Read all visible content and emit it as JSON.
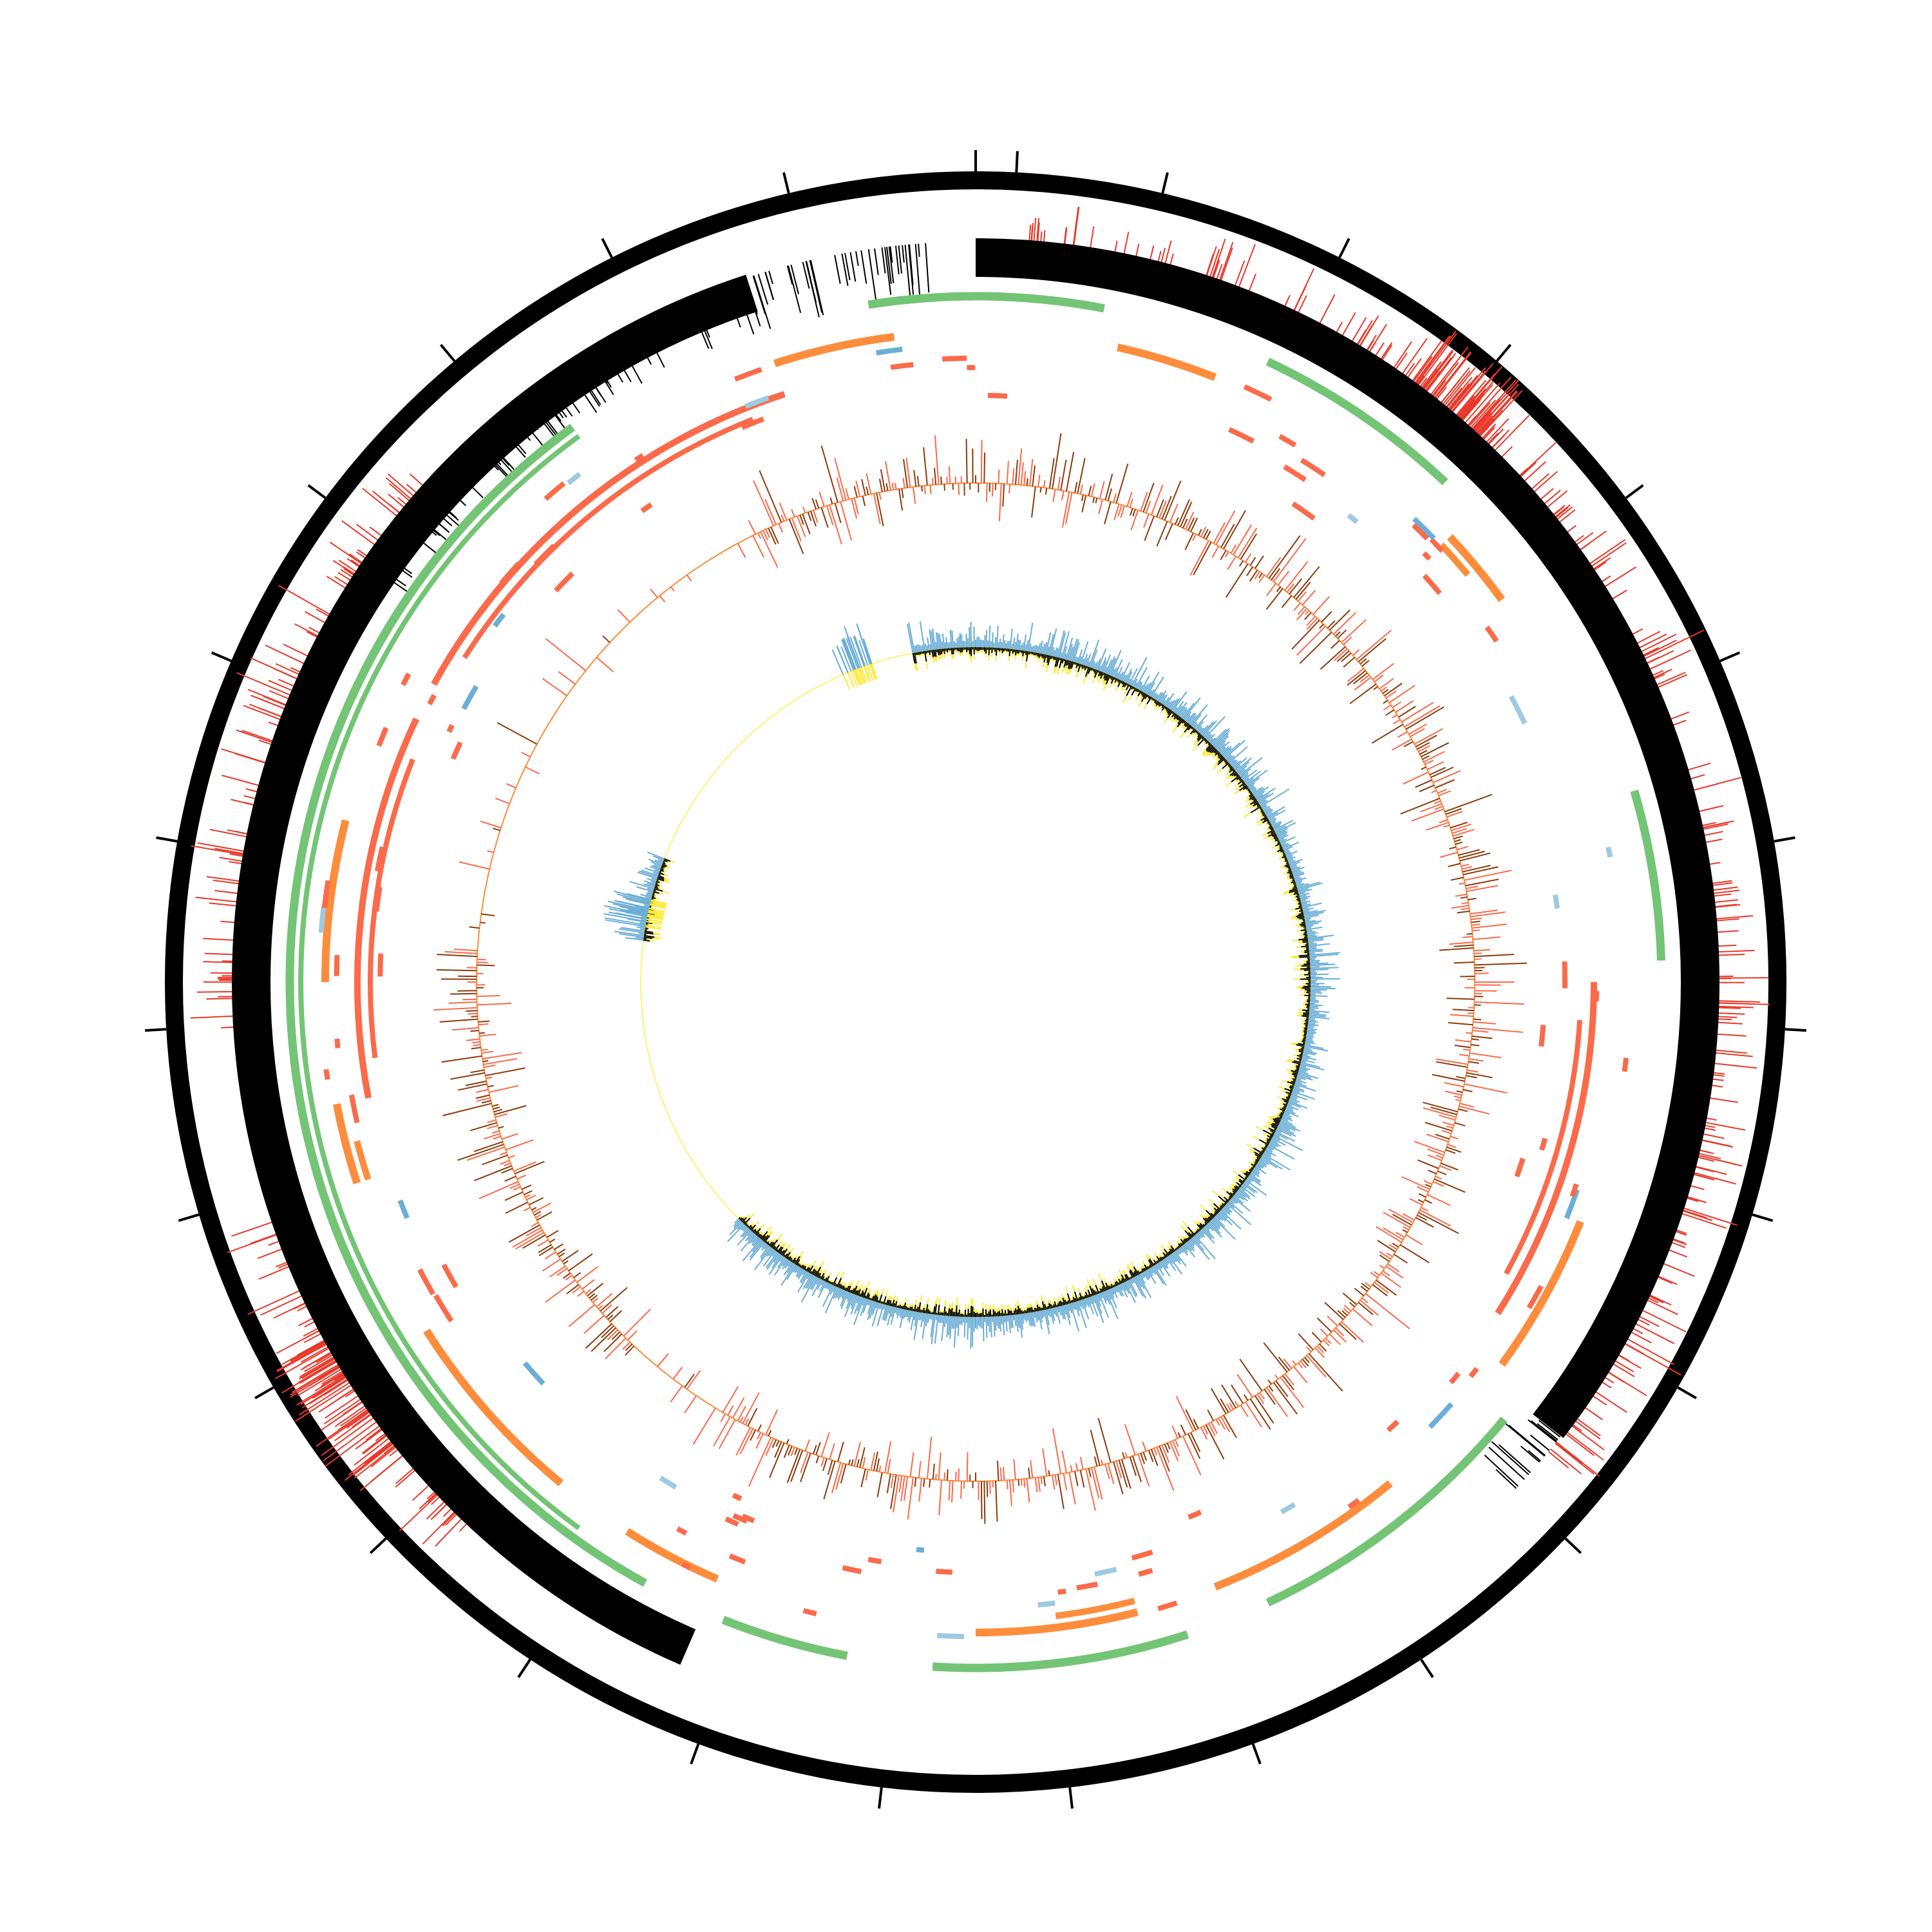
{
  "diagram": {
    "type": "circular-genome-map",
    "colors": {
      "backbone": "#000000",
      "outer_spikes": "#e8392a",
      "inner_black_track": "#000000",
      "green_track": "#74c476",
      "orange_track": "#fd8d3c",
      "salmon_track": "#fb6a4a",
      "blue_track": "#6baed6",
      "light_blue_track": "#9ecae1",
      "gc_content_high": "#fb6a4a",
      "gc_content_low": "#8c3b0c",
      "gc_content_baseline": "#fd8d3c",
      "gc_skew_positive": "#6baed6",
      "gc_skew_negative": "#000000",
      "gc_skew_fill": "#ffeb3b",
      "gc_skew_baseline": "#fff176"
    },
    "tracks": [
      {
        "name": "backbone",
        "kind": "ring",
        "color_key": "backbone"
      },
      {
        "name": "outer-features",
        "kind": "spikes",
        "color_key": "outer_spikes",
        "arcs": [
          [
            0.01,
            0.36
          ],
          [
            0.62,
            0.7
          ],
          [
            0.74,
            0.87
          ]
        ]
      },
      {
        "name": "black-block",
        "kind": "block-and-bars",
        "color_key": "inner_black_track",
        "solid_arcs": [
          [
            0.0,
            0.355
          ],
          [
            0.565,
            0.95
          ]
        ],
        "bar_arcs": [
          [
            0.355,
            0.37
          ],
          [
            0.84,
            0.99
          ],
          [
            0.89,
            0.93
          ]
        ]
      },
      {
        "name": "green-segments",
        "kind": "segments",
        "color_key": "green_track",
        "arcs": [
          [
            0.0,
            0.03
          ],
          [
            0.07,
            0.12
          ],
          [
            0.205,
            0.245
          ],
          [
            0.36,
            0.43
          ],
          [
            0.45,
            0.51
          ],
          [
            0.53,
            0.56
          ],
          [
            0.58,
            0.9
          ],
          [
            0.975,
            1.0
          ]
        ]
      },
      {
        "name": "orange-segments",
        "kind": "segments",
        "color_key": "orange_track",
        "arcs": [
          [
            0.035,
            0.06
          ],
          [
            0.13,
            0.15
          ],
          [
            0.31,
            0.35
          ],
          [
            0.39,
            0.44
          ],
          [
            0.46,
            0.5
          ],
          [
            0.565,
            0.59
          ],
          [
            0.61,
            0.66
          ],
          [
            0.7,
            0.72
          ],
          [
            0.75,
            0.79
          ],
          [
            0.95,
            0.98
          ]
        ]
      },
      {
        "name": "salmon-segments",
        "kind": "segments",
        "color_key": "salmon_track",
        "arcs": [
          [
            0.25,
            0.34
          ],
          [
            0.72,
            0.82
          ],
          [
            0.83,
            0.95
          ]
        ]
      },
      {
        "name": "gc-content",
        "kind": "histogram",
        "color_key": "gc_content_high"
      },
      {
        "name": "gc-skew",
        "kind": "histogram",
        "color_key": "gc_skew_positive"
      }
    ]
  }
}
